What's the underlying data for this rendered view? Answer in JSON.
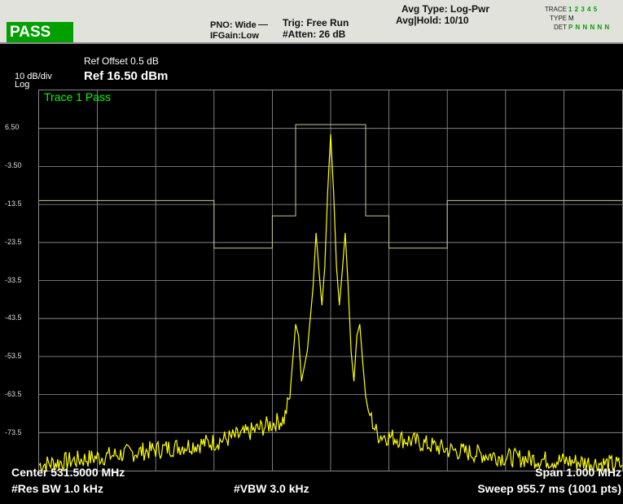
{
  "status": {
    "result": "PASS"
  },
  "header": {
    "pno": "PNO: Wide",
    "ifgain": "IFGain:Low",
    "trig": "Trig: Free Run",
    "atten": "#Atten: 26 dB",
    "avg_type": "Avg Type: Log-Pwr",
    "avg_hold": "Avg|Hold: 10/10"
  },
  "trace_panel": {
    "trace_label": "TRACE",
    "trace_value": "1 2 3 4 5",
    "type_label": "TYPE",
    "type_value": "M",
    "det_label": "DET",
    "det_value": "P N N N N N"
  },
  "scale": {
    "db_per_div": "10 dB/div",
    "log": "Log",
    "ref_offset": "Ref Offset 0.5 dB",
    "ref_level": "Ref 16.50 dBm"
  },
  "trace_status": "Trace 1 Pass",
  "y_ticks": [
    "6.50",
    "-3.50",
    "-13.5",
    "-23.5",
    "-33.5",
    "-43.5",
    "-53.5",
    "-63.5",
    "-73.5"
  ],
  "bottom": {
    "center": "Center 531.5000 MHz",
    "span": "Span 1.000 MHz",
    "res_bw": "#Res BW 1.0 kHz",
    "vbw": "#VBW 3.0 kHz",
    "sweep": "Sweep  955.7 ms (1001 pts)"
  },
  "colors": {
    "trace": "#ffff00",
    "limit": "#c8c890",
    "grid": "#9a9a9a",
    "pass": "#00a000",
    "status_green": "#00ff00"
  },
  "chart_data": {
    "type": "line",
    "xlabel": "",
    "ylabel": "",
    "x_unit": "MHz",
    "y_unit": "dBm",
    "xlim": [
      531.0,
      532.0
    ],
    "ylim": [
      -83.5,
      16.5
    ],
    "grid": true,
    "series": [
      {
        "x": [
          531.0,
          531.1,
          531.2,
          531.3,
          531.35,
          531.42,
          531.43,
          531.44,
          531.445,
          531.45,
          531.46,
          531.47,
          531.475,
          531.48,
          531.485,
          531.49,
          531.495,
          531.5,
          531.505,
          531.51,
          531.515,
          531.52,
          531.525,
          531.53,
          531.535,
          531.54,
          531.545,
          531.55,
          531.555,
          531.56,
          531.565,
          531.57,
          531.58,
          531.65,
          531.7,
          531.8,
          531.9,
          532.0
        ],
        "y": [
          -82,
          -80,
          -78,
          -76,
          -74,
          -70,
          -64,
          -45,
          -48,
          -60,
          -52,
          -35,
          -21,
          -31,
          -40,
          -30,
          -10,
          5,
          -10,
          -30,
          -40,
          -31,
          -21,
          -35,
          -52,
          -60,
          -48,
          -45,
          -55,
          -64,
          -68,
          -70,
          -74,
          -76,
          -78,
          -80,
          -81,
          -82
        ]
      },
      {
        "x": [
          531.0,
          531.3,
          531.3,
          531.4,
          531.4,
          531.44,
          531.44,
          531.56,
          531.56,
          531.6,
          531.6,
          531.7,
          531.7,
          532.0
        ],
        "y": [
          -12.5,
          -12.5,
          -25,
          -25,
          -16.5,
          -16.5,
          7.5,
          7.5,
          -16.5,
          -16.5,
          -25,
          -25,
          -12.5,
          -12.5
        ]
      }
    ]
  }
}
